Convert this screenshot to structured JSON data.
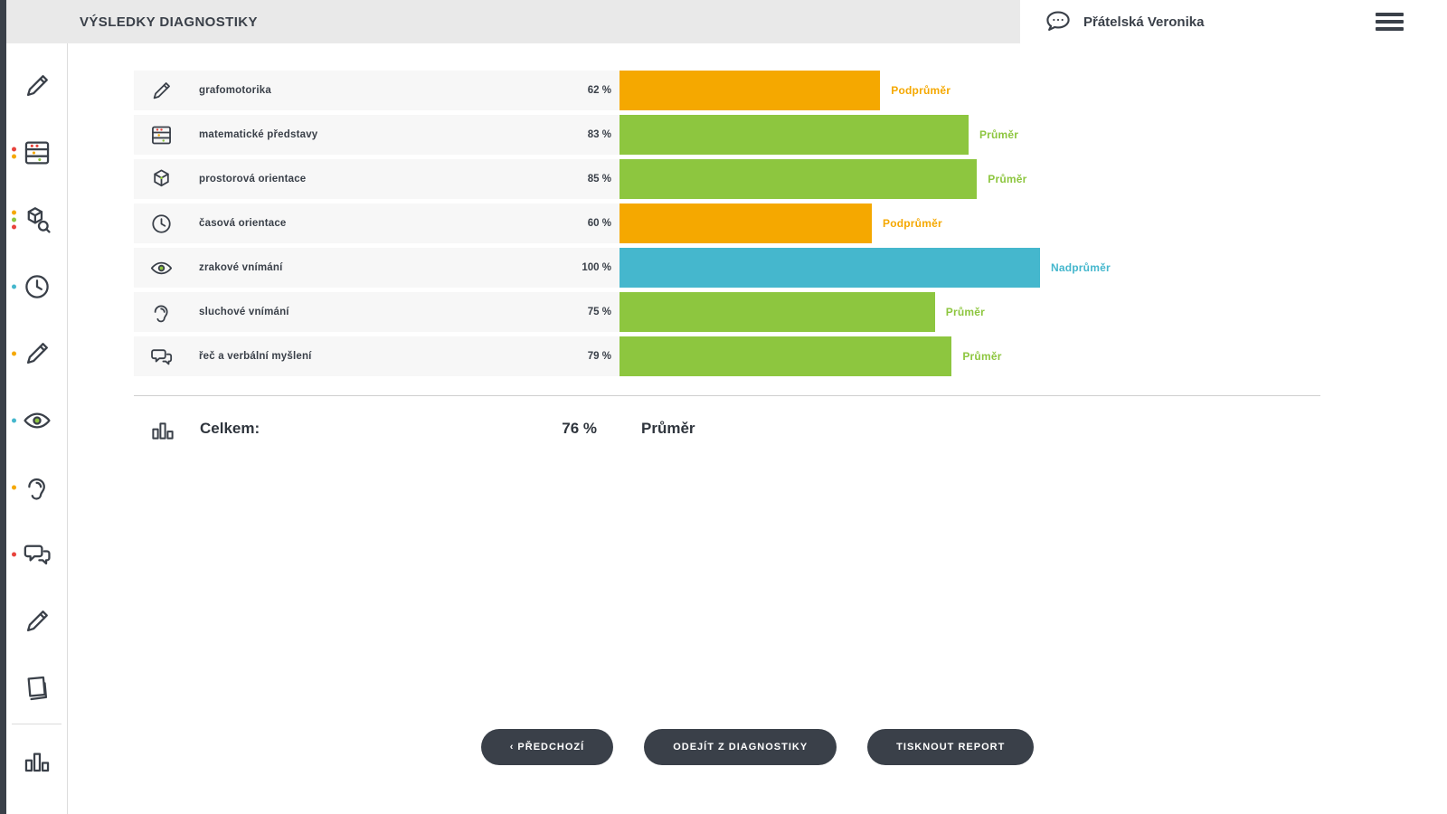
{
  "header": {
    "title": "VÝSLEDKY DIAGNOSTIKY",
    "user_name": "Přátelská Veronika"
  },
  "results": {
    "rows": [
      {
        "label": "grafomotorika",
        "percent": "62 %",
        "value": 62,
        "category": "Podprůměr",
        "color": "#F5A800"
      },
      {
        "label": "matematické představy",
        "percent": "83 %",
        "value": 83,
        "category": "Průměr",
        "color": "#8DC63F"
      },
      {
        "label": "prostorová orientace",
        "percent": "85 %",
        "value": 85,
        "category": "Průměr",
        "color": "#8DC63F"
      },
      {
        "label": "časová orientace",
        "percent": "60 %",
        "value": 60,
        "category": "Podprůměr",
        "color": "#F5A800"
      },
      {
        "label": "zrakové vnímání",
        "percent": "100 %",
        "value": 100,
        "category": "Nadprůměr",
        "color": "#45B7CD"
      },
      {
        "label": "sluchové vnímání",
        "percent": "75 %",
        "value": 75,
        "category": "Průměr",
        "color": "#8DC63F"
      },
      {
        "label": "řeč a verbální myšlení",
        "percent": "79 %",
        "value": 79,
        "category": "Průměr",
        "color": "#8DC63F"
      }
    ],
    "total": {
      "label": "Celkem:",
      "percent": "76 %",
      "category": "Průměr"
    }
  },
  "buttons": {
    "previous": "‹ PŘEDCHOZÍ",
    "exit": "ODEJÍT Z DIAGNOSTIKY",
    "print": "TISKNOUT REPORT"
  },
  "sidebar": {
    "items": [
      {
        "icon": "pencil-icon",
        "dots": []
      },
      {
        "icon": "math-icon",
        "dots": [
          "#E8433C",
          "#F5A800"
        ]
      },
      {
        "icon": "cube-search-icon",
        "dots": [
          "#F5A800",
          "#8DC63F",
          "#E8433C"
        ]
      },
      {
        "icon": "clock-icon",
        "dots": [
          "#45B7CD"
        ]
      },
      {
        "icon": "pencil-icon",
        "dots": [
          "#F5A800"
        ]
      },
      {
        "icon": "eye-icon",
        "dots": [
          "#45B7CD"
        ]
      },
      {
        "icon": "ear-icon",
        "dots": [
          "#F5A800"
        ]
      },
      {
        "icon": "speech-icon",
        "dots": [
          "#E8433C"
        ]
      },
      {
        "icon": "pencil-icon",
        "dots": []
      },
      {
        "icon": "notes-icon",
        "dots": []
      },
      {
        "icon": "chart-icon",
        "dots": []
      }
    ]
  },
  "colors": {
    "below_average": "#F5A800",
    "average": "#8DC63F",
    "above_average": "#45B7CD",
    "dark": "#3A4049"
  },
  "chart_data": {
    "type": "bar",
    "orientation": "horizontal",
    "title": "VÝSLEDKY DIAGNOSTIKY",
    "categories": [
      "grafomotorika",
      "matematické představy",
      "prostorová orientace",
      "časová orientace",
      "zrakové vnímání",
      "sluchové vnímání",
      "řeč a verbální myšlení"
    ],
    "values": [
      62,
      83,
      85,
      60,
      100,
      75,
      79
    ],
    "value_labels": [
      "62 %",
      "83 %",
      "85 %",
      "60 %",
      "100 %",
      "75 %",
      "79 %"
    ],
    "ratings": [
      "Podprůměr",
      "Průměr",
      "Průměr",
      "Podprůměr",
      "Nadprůměr",
      "Průměr",
      "Průměr"
    ],
    "bar_colors": [
      "#F5A800",
      "#8DC63F",
      "#8DC63F",
      "#F5A800",
      "#45B7CD",
      "#8DC63F",
      "#8DC63F"
    ],
    "total": {
      "label": "Celkem:",
      "value": 76,
      "rating": "Průměr"
    },
    "xlim": [
      0,
      100
    ],
    "grid": false,
    "legend": false
  }
}
